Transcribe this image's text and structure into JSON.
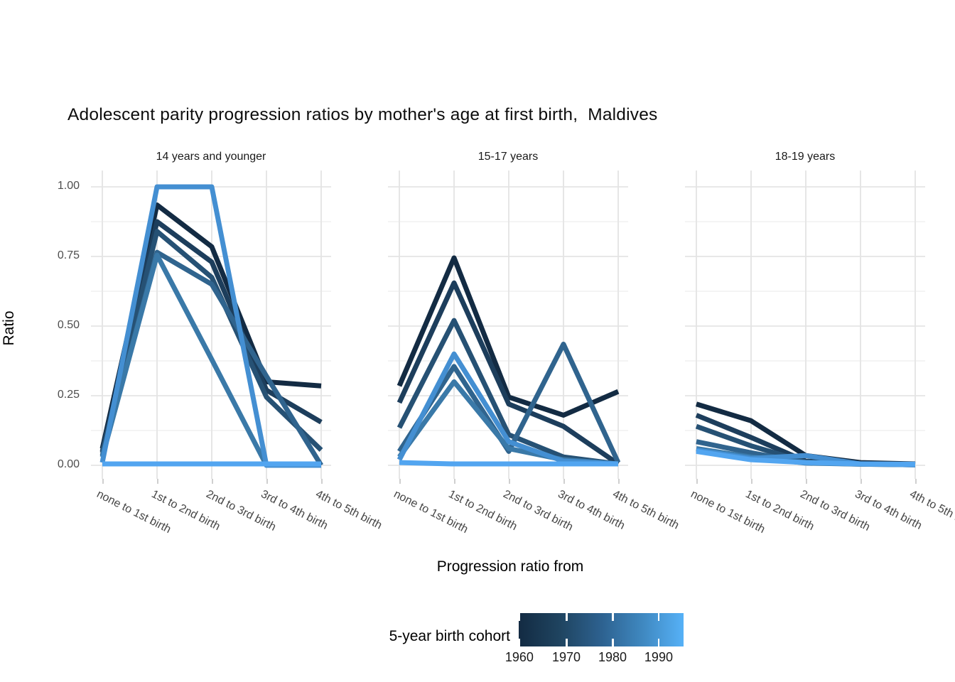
{
  "title": "Adolescent parity progression ratios by mother's age at first birth,  Maldives",
  "y_axis": {
    "label": "Ratio",
    "tick_labels": [
      "1.00",
      "0.75",
      "0.50",
      "0.25",
      "0.00"
    ],
    "tick_values": [
      1.0,
      0.75,
      0.5,
      0.25,
      0.0
    ]
  },
  "x_axis": {
    "label": "Progression ratio from",
    "categories": [
      "none to 1st birth",
      "1st to 2nd birth",
      "2nd to 3rd birth",
      "3rd to 4th birth",
      "4th to 5th birth"
    ]
  },
  "legend": {
    "title": "5-year birth cohort",
    "tick_labels": [
      "1960",
      "1970",
      "1980",
      "1990"
    ],
    "tick_positions": [
      0.004,
      0.289,
      0.569,
      0.849
    ],
    "gradient_stops": [
      "#132B43",
      "#1F4460",
      "#2D618F",
      "#3F88C0",
      "#56B1F7"
    ]
  },
  "chart_data": {
    "type": "line",
    "title": "Adolescent parity progression ratios by mother's age at first birth,  Maldives",
    "xlabel": "Progression ratio from",
    "ylabel": "Ratio",
    "ylim": [
      0,
      1
    ],
    "yticks": [
      0,
      0.25,
      0.5,
      0.75,
      1.0
    ],
    "grid": "on",
    "legend_position": "bottom",
    "color_scale": {
      "name": "5-year birth cohort",
      "low": "#132B43",
      "high": "#56B1F7",
      "breaks": [
        1960,
        1970,
        1980,
        1990
      ]
    },
    "categories": [
      "none to 1st birth",
      "1st to 2nd birth",
      "2nd to 3rd birth",
      "3rd to 4th birth",
      "4th to 5th birth"
    ],
    "facets": [
      {
        "label": "14 years and younger",
        "series": [
          {
            "name": "1960",
            "color": "#132B43",
            "values": [
              0.06,
              0.935,
              0.785,
              0.3,
              0.285
            ]
          },
          {
            "name": "1965",
            "color": "#1D3E5C",
            "values": [
              0.05,
              0.875,
              0.73,
              0.27,
              0.155
            ]
          },
          {
            "name": "1970",
            "color": "#265174",
            "values": [
              0.045,
              0.84,
              0.675,
              0.245,
              0.055
            ]
          },
          {
            "name": "1975",
            "color": "#30648E",
            "values": [
              0.035,
              0.765,
              0.65,
              0.32,
              0.0
            ]
          },
          {
            "name": "1980",
            "color": "#3A79A8",
            "values": [
              0.03,
              0.755,
              0.38,
              0.0,
              0.0
            ]
          },
          {
            "name": "1985",
            "color": "#448FD2",
            "values": [
              0.01,
              1.0,
              1.0,
              0.0,
              0.0
            ]
          },
          {
            "name": "1990",
            "color": "#52A5F0",
            "values": [
              0.005,
              0.005,
              0.005,
              0.005,
              0.005
            ]
          }
        ]
      },
      {
        "label": "15-17 years",
        "series": [
          {
            "name": "1960",
            "color": "#132B43",
            "values": [
              0.285,
              0.745,
              0.245,
              0.18,
              0.265
            ]
          },
          {
            "name": "1965",
            "color": "#1D3E5C",
            "values": [
              0.225,
              0.655,
              0.22,
              0.14,
              0.005
            ]
          },
          {
            "name": "1970",
            "color": "#265174",
            "values": [
              0.135,
              0.52,
              0.11,
              0.03,
              0.005
            ]
          },
          {
            "name": "1975",
            "color": "#30648E",
            "values": [
              0.05,
              0.355,
              0.05,
              0.435,
              0.01
            ]
          },
          {
            "name": "1980",
            "color": "#3A79A8",
            "values": [
              0.03,
              0.3,
              0.06,
              0.02,
              0.005
            ]
          },
          {
            "name": "1985",
            "color": "#448FD2",
            "values": [
              0.02,
              0.4,
              0.085,
              0.015,
              0.005
            ]
          },
          {
            "name": "1990",
            "color": "#52A5F0",
            "values": [
              0.01,
              0.005,
              0.005,
              0.005,
              0.005
            ]
          }
        ]
      },
      {
        "label": "18-19 years",
        "series": [
          {
            "name": "1960",
            "color": "#132B43",
            "values": [
              0.22,
              0.16,
              0.035,
              0.01,
              0.005
            ]
          },
          {
            "name": "1965",
            "color": "#1D3E5C",
            "values": [
              0.18,
              0.1,
              0.015,
              0.007,
              0.004
            ]
          },
          {
            "name": "1970",
            "color": "#265174",
            "values": [
              0.14,
              0.07,
              0.012,
              0.005,
              0.003
            ]
          },
          {
            "name": "1975",
            "color": "#30648E",
            "values": [
              0.085,
              0.045,
              0.01,
              0.004,
              0.002
            ]
          },
          {
            "name": "1980",
            "color": "#3A79A8",
            "values": [
              0.06,
              0.03,
              0.008,
              0.004,
              0.002
            ]
          },
          {
            "name": "1985",
            "color": "#448FD2",
            "values": [
              0.055,
              0.025,
              0.035,
              0.005,
              0.002
            ]
          },
          {
            "name": "1990",
            "color": "#52A5F0",
            "values": [
              0.05,
              0.02,
              0.01,
              0.005,
              0.004
            ]
          }
        ]
      }
    ]
  }
}
